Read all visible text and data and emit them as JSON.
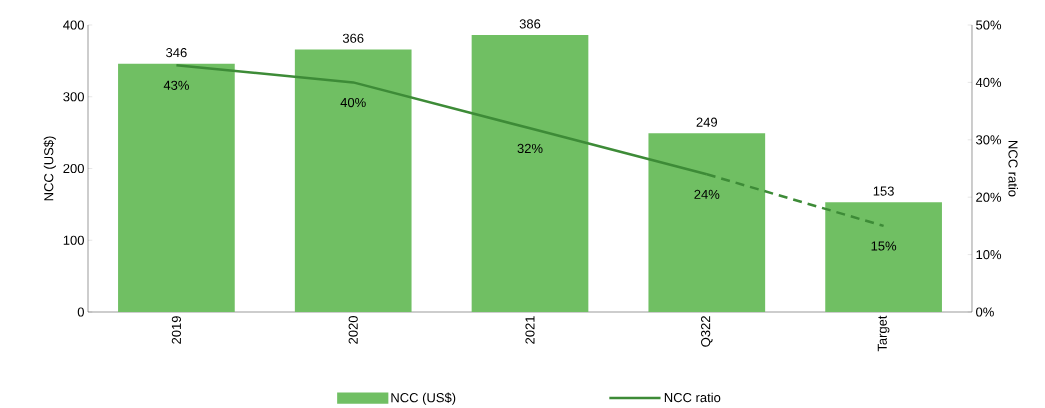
{
  "chart_data": {
    "type": "bar",
    "categories": [
      "2019",
      "2020",
      "2021",
      "Q322",
      "Target"
    ],
    "ylabel": "NCC (US$)",
    "y2label": "NCC ratio",
    "ylim": [
      0,
      400
    ],
    "yticks": [
      0,
      100,
      200,
      300,
      400
    ],
    "y2lim": [
      0,
      50
    ],
    "y2ticks": [
      {
        "value": 0,
        "label": "0%"
      },
      {
        "value": 10,
        "label": "10%"
      },
      {
        "value": 20,
        "label": "20%"
      },
      {
        "value": 30,
        "label": "30%"
      },
      {
        "value": 40,
        "label": "40%"
      },
      {
        "value": 50,
        "label": "50%"
      }
    ],
    "legend": "bottom",
    "series": [
      {
        "name": "NCC (US$)",
        "color": "#70bf63",
        "values": [
          346,
          366,
          386,
          249,
          153
        ],
        "value_labels": [
          "346",
          "366",
          "386",
          "249",
          "153"
        ]
      },
      {
        "name": "NCC ratio",
        "type": "line",
        "axis": "y2",
        "color": "#3d8b37",
        "line_style": "solid",
        "values": [
          43,
          40,
          32,
          24,
          null
        ],
        "value_labels": [
          "43%",
          "40%",
          "32%",
          "24%",
          null
        ]
      },
      {
        "type": "line",
        "axis": "y2",
        "color": "#3d8b37",
        "line_style": "dashed",
        "values": [
          null,
          null,
          null,
          24,
          15
        ],
        "value_labels": [
          null,
          null,
          null,
          null,
          "15%"
        ]
      }
    ]
  }
}
